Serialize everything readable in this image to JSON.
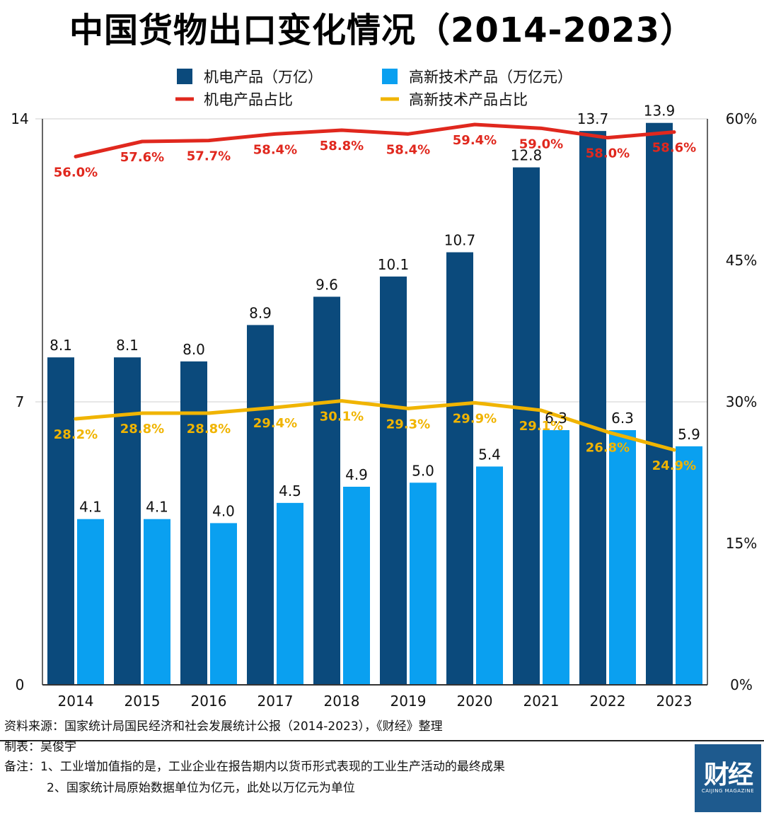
{
  "title": "中国货物出口变化情况（2014-2023）",
  "chart_data": {
    "type": "bar",
    "categories": [
      "2014",
      "2015",
      "2016",
      "2017",
      "2018",
      "2019",
      "2020",
      "2021",
      "2022",
      "2023"
    ],
    "series": [
      {
        "name": "机电产品（万亿）",
        "kind": "bar",
        "axis": "left",
        "color": "#0b4a7c",
        "values": [
          8.1,
          8.1,
          8.0,
          8.9,
          9.6,
          10.1,
          10.7,
          12.8,
          13.7,
          13.9
        ],
        "labels": [
          "8.1",
          "8.1",
          "8.0",
          "8.9",
          "9.6",
          "10.1",
          "10.7",
          "12.8",
          "13.7",
          "13.9"
        ]
      },
      {
        "name": "高新技术产品（万亿元）",
        "kind": "bar",
        "axis": "left",
        "color": "#0aa0f0",
        "values": [
          4.1,
          4.1,
          4.0,
          4.5,
          4.9,
          5.0,
          5.4,
          6.3,
          6.3,
          5.9
        ],
        "labels": [
          "4.1",
          "4.1",
          "4.0",
          "4.5",
          "4.9",
          "5.0",
          "5.4",
          "6.3",
          "6.3",
          "5.9"
        ]
      },
      {
        "name": "机电产品占比",
        "kind": "line",
        "axis": "right",
        "color": "#e0281e",
        "values": [
          56.0,
          57.6,
          57.7,
          58.4,
          58.8,
          58.4,
          59.4,
          59.0,
          58.0,
          58.6
        ],
        "labels": [
          "56.0%",
          "57.6%",
          "57.7%",
          "58.4%",
          "58.8%",
          "58.4%",
          "59.4%",
          "59.0%",
          "58.0%",
          "58.6%"
        ]
      },
      {
        "name": "高新技术产品占比",
        "kind": "line",
        "axis": "right",
        "color": "#f0b400",
        "values": [
          28.2,
          28.8,
          28.8,
          29.4,
          30.1,
          29.3,
          29.9,
          29.1,
          26.8,
          24.9
        ],
        "labels": [
          "28.2%",
          "28.8%",
          "28.8%",
          "29.4%",
          "30.1%",
          "29.3%",
          "29.9%",
          "29.1%",
          "26.8%",
          "24.9%"
        ]
      }
    ],
    "y_left": {
      "ylim": [
        0,
        14
      ],
      "ticks": [
        "0",
        "7",
        "14"
      ]
    },
    "y_right": {
      "ylim": [
        0,
        60
      ],
      "unit": "%",
      "ticks": [
        "0%",
        "15%",
        "30%",
        "45%",
        "60%"
      ]
    },
    "grid": true,
    "legend": "top"
  },
  "footer": {
    "source": "资料来源：国家统计局国民经济和社会发展统计公报（2014-2023），《财经》整理",
    "author": "制表：吴俊宇",
    "note1": "备注：1、工业增加值指的是，工业企业在报告期内以货币形式表现的工业生产活动的最终成果",
    "note2": "2、国家统计局原始数据单位为亿元，此处以万亿元为单位"
  },
  "logo": {
    "text": "财经",
    "subtitle": "CAIJING MAGAZINE",
    "color": "#1e5a8e"
  }
}
